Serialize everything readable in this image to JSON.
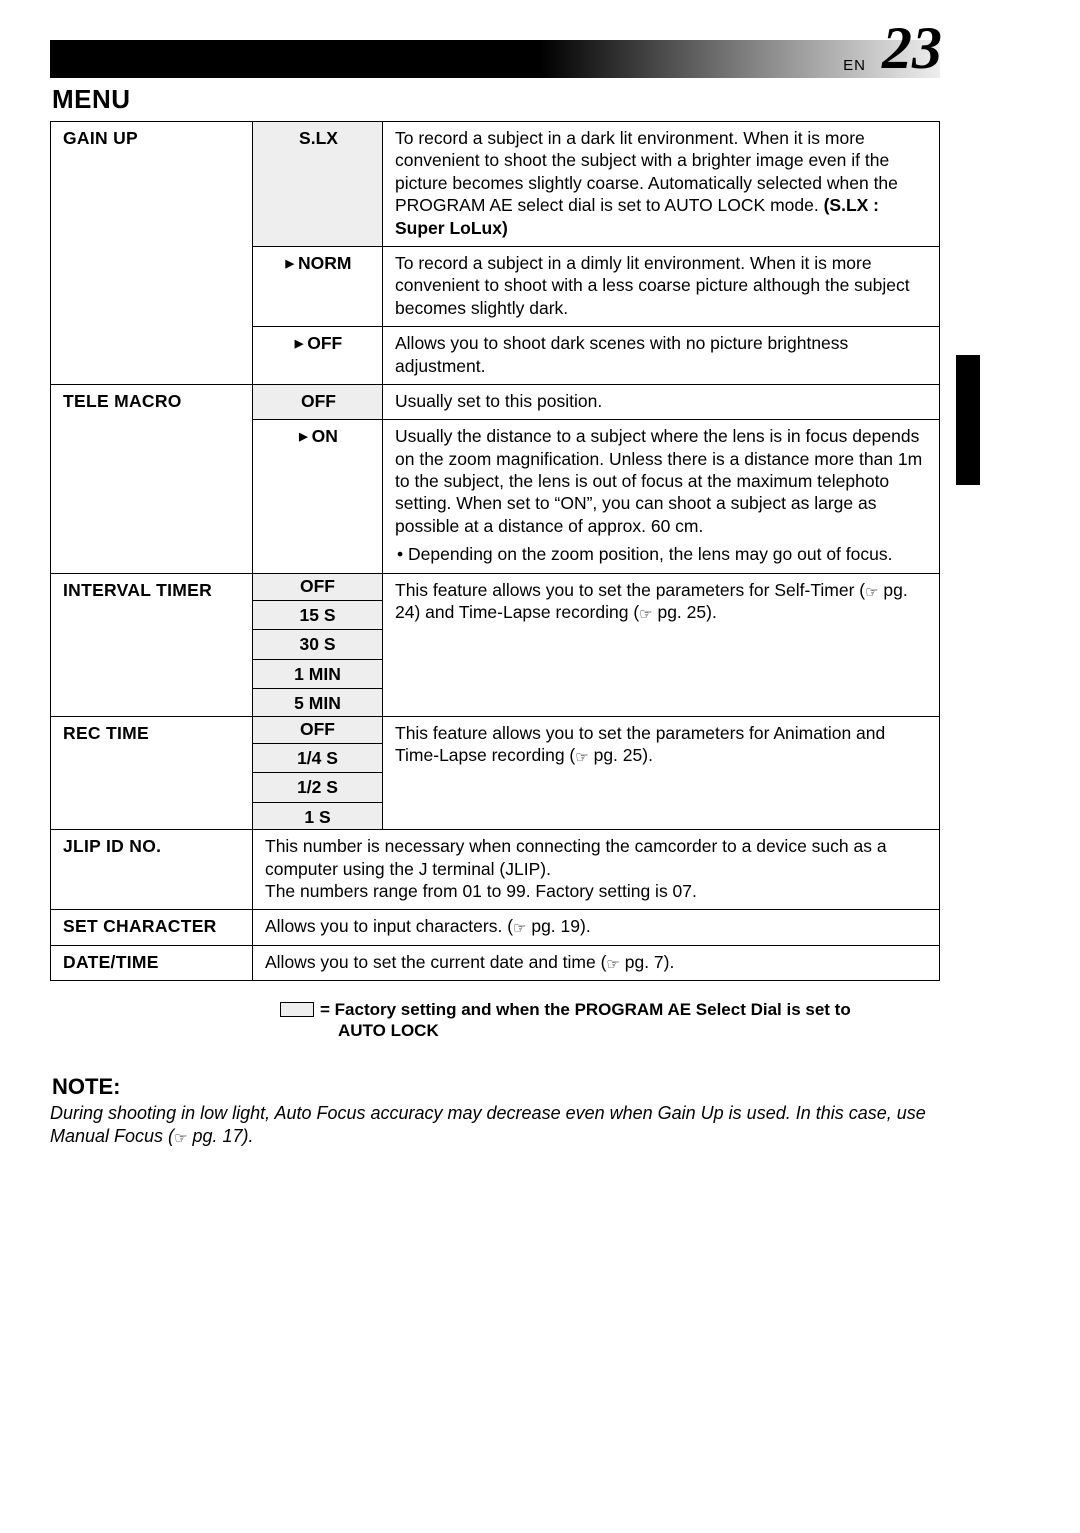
{
  "page": {
    "lang_label": "EN",
    "number": "23"
  },
  "title": "MENU",
  "rows": {
    "gainup": {
      "name": "GAIN UP",
      "slx": {
        "label": "S.LX",
        "desc": "To record a subject in a dark lit environment. When it is more convenient to shoot the subject with a brighter image even if the picture becomes slightly coarse. Automatically selected when the PROGRAM AE select dial is set to AUTO LOCK mode.  ",
        "bold_suffix": "(S.LX : Super LoLux)"
      },
      "norm": {
        "label": "NORM",
        "desc": "To record a subject in a dimly lit environment. When it is more convenient to shoot with a less coarse picture although the subject becomes slightly dark."
      },
      "off": {
        "label": "OFF",
        "desc": "Allows you to shoot dark scenes with no picture brightness adjustment."
      }
    },
    "telemacro": {
      "name": "TELE  MACRO",
      "off": {
        "label": "OFF",
        "desc": "Usually set to this position."
      },
      "on": {
        "label": "ON",
        "desc": "Usually the distance to a subject where the lens is in focus depends on the zoom magnification. Unless there is a distance more than 1m to the subject, the lens is out of focus at the maximum telephoto setting. When set to “ON”, you can shoot a subject as large as possible at a distance of approx. 60 cm.",
        "bullet": "Depending on the zoom position, the lens may go out of focus."
      }
    },
    "interval": {
      "name": "INTERVAL TIMER",
      "options": [
        "OFF",
        "15 S",
        "30 S",
        "1 MIN",
        "5 MIN"
      ],
      "desc_a": "This feature allows you to set the parameters for Self-Timer (",
      "ref1": " pg. 24) and Time-Lapse recording (",
      "ref2": " pg. 25)."
    },
    "rectime": {
      "name": "REC TIME",
      "options": [
        "OFF",
        "1/4 S",
        "1/2 S",
        "1 S"
      ],
      "desc_a": "This feature allows you to set the parameters for Animation and Time-Lapse recording (",
      "ref": " pg. 25)."
    },
    "jlip": {
      "name": "JLIP ID NO.",
      "desc": "This number is necessary when connecting the camcorder to a device such as a computer using the J terminal (JLIP).\nThe numbers range from 01 to 99. Factory setting is 07."
    },
    "setchar": {
      "name": "SET CHARACTER",
      "desc_a": "Allows you to input characters. (",
      "ref": " pg. 19)."
    },
    "datetime": {
      "name": "DATE/TIME",
      "desc_a": "Allows you to set the current date and time (",
      "ref": " pg. 7)."
    }
  },
  "legend": {
    "line1": "=  Factory setting and when the PROGRAM AE Select Dial is set to",
    "line2": "AUTO LOCK"
  },
  "note": {
    "heading": "NOTE:",
    "body_a": "During shooting in low light, Auto Focus accuracy may decrease even when Gain Up is used. In this case, use Manual Focus (",
    "ref": " pg. 17)."
  },
  "ref_glyph": "☞"
}
